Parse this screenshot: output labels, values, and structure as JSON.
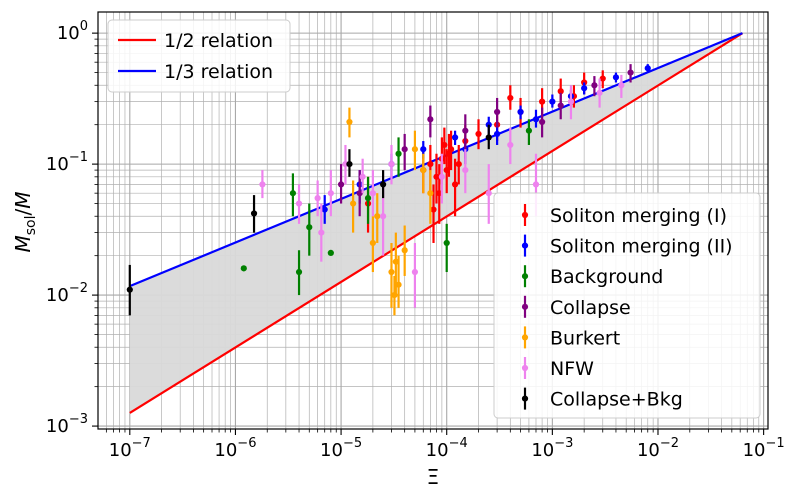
{
  "chart_data": {
    "type": "scatter",
    "xscale": "log",
    "yscale": "log",
    "xlabel_mathml": "Ξ",
    "ylabel_parts": {
      "main": "M",
      "sub": "sol",
      "sep": "/",
      "den": "M"
    },
    "xlim": [
      5e-08,
      0.11
    ],
    "ylim": [
      0.00095,
      1.45
    ],
    "xticks": [
      {
        "value": 1e-07,
        "base": "10",
        "exp": "−7"
      },
      {
        "value": 1e-06,
        "base": "10",
        "exp": "−6"
      },
      {
        "value": 1e-05,
        "base": "10",
        "exp": "−5"
      },
      {
        "value": 0.0001,
        "base": "10",
        "exp": "−4"
      },
      {
        "value": 0.001,
        "base": "10",
        "exp": "−3"
      },
      {
        "value": 0.01,
        "base": "10",
        "exp": "−2"
      },
      {
        "value": 0.1,
        "base": "10",
        "exp": "−1"
      }
    ],
    "yticks": [
      {
        "value": 0.001,
        "base": "10",
        "exp": "−3"
      },
      {
        "value": 0.01,
        "base": "10",
        "exp": "−2"
      },
      {
        "value": 0.1,
        "base": "10",
        "exp": "−1"
      },
      {
        "value": 1,
        "base": "10",
        "exp": "0"
      }
    ],
    "lines": [
      {
        "name": "1/2 relation",
        "color": "#ff0000",
        "x": [
          1e-07,
          0.063
        ],
        "y": [
          0.00126,
          1.0
        ]
      },
      {
        "name": "1/3 relation",
        "color": "#0000ff",
        "x": [
          1e-07,
          0.063
        ],
        "y": [
          0.0117,
          1.0
        ]
      }
    ],
    "band": {
      "color": "#d9d9d9",
      "between": [
        "1/2 relation",
        "1/3 relation"
      ]
    },
    "series": [
      {
        "name": "Soliton merging (I)",
        "color": "#ff0000",
        "points": [
          [
            8e-05,
            0.08,
            0.05,
            0.12
          ],
          [
            9e-05,
            0.11,
            0.07,
            0.16
          ],
          [
            0.0001,
            0.09,
            0.06,
            0.13
          ],
          [
            0.00011,
            0.13,
            0.09,
            0.18
          ],
          [
            0.00012,
            0.07,
            0.04,
            0.11
          ],
          [
            7e-05,
            0.1,
            0.06,
            0.14
          ],
          [
            8.5e-05,
            0.06,
            0.035,
            0.1
          ],
          [
            9.5e-05,
            0.14,
            0.1,
            0.19
          ],
          [
            0.000105,
            0.12,
            0.08,
            0.17
          ],
          [
            0.00013,
            0.1,
            0.07,
            0.14
          ],
          [
            6e-05,
            0.09,
            0.06,
            0.13
          ],
          [
            0.00015,
            0.15,
            0.11,
            0.2
          ],
          [
            0.0002,
            0.17,
            0.13,
            0.22
          ],
          [
            0.0003,
            0.2,
            0.15,
            0.26
          ],
          [
            0.0005,
            0.25,
            0.19,
            0.32
          ],
          [
            0.0008,
            0.3,
            0.24,
            0.38
          ],
          [
            0.0012,
            0.36,
            0.28,
            0.45
          ],
          [
            0.002,
            0.42,
            0.34,
            0.5
          ],
          [
            0.003,
            0.45,
            0.38,
            0.52
          ],
          [
            1.8e-05,
            0.05,
            0.03,
            0.08
          ],
          [
            7.5e-05,
            0.045,
            0.025,
            0.07
          ],
          [
            0.0004,
            0.32,
            0.26,
            0.4
          ],
          [
            0.0016,
            0.33,
            0.27,
            0.4
          ]
        ]
      },
      {
        "name": "Soliton merging (II)",
        "color": "#0000ff",
        "points": [
          [
            7e-06,
            0.045,
            0.035,
            0.058
          ],
          [
            1.5e-05,
            0.07,
            0.05,
            0.09
          ],
          [
            3e-05,
            0.1,
            0.08,
            0.12
          ],
          [
            6e-05,
            0.13,
            0.11,
            0.15
          ],
          [
            0.00012,
            0.16,
            0.14,
            0.18
          ],
          [
            0.00025,
            0.2,
            0.17,
            0.23
          ],
          [
            0.0005,
            0.25,
            0.22,
            0.28
          ],
          [
            0.001,
            0.3,
            0.27,
            0.34
          ],
          [
            0.002,
            0.38,
            0.34,
            0.42
          ],
          [
            0.004,
            0.46,
            0.42,
            0.5
          ],
          [
            0.008,
            0.54,
            0.5,
            0.58
          ],
          [
            0.00015,
            0.13,
            0.1,
            0.16
          ],
          [
            0.0007,
            0.22,
            0.19,
            0.26
          ],
          [
            0.0003,
            0.17,
            0.14,
            0.21
          ],
          [
            0.0015,
            0.33,
            0.29,
            0.37
          ]
        ]
      },
      {
        "name": "Background",
        "color": "#008000",
        "points": [
          [
            1.2e-06,
            0.016,
            0.016,
            0.016
          ],
          [
            3.5e-06,
            0.06,
            0.04,
            0.085
          ],
          [
            5e-06,
            0.033,
            0.02,
            0.05
          ],
          [
            8e-06,
            0.021,
            0.021,
            0.021
          ],
          [
            1.8e-05,
            0.055,
            0.035,
            0.08
          ],
          [
            3.5e-05,
            0.12,
            0.08,
            0.16
          ],
          [
            0.0001,
            0.025,
            0.015,
            0.035
          ],
          [
            0.0006,
            0.18,
            0.14,
            0.22
          ],
          [
            4e-06,
            0.015,
            0.01,
            0.022
          ]
        ]
      },
      {
        "name": "Collapse",
        "color": "#800080",
        "points": [
          [
            4e-05,
            0.13,
            0.09,
            0.17
          ],
          [
            7e-05,
            0.22,
            0.16,
            0.28
          ],
          [
            0.00015,
            0.18,
            0.13,
            0.24
          ],
          [
            0.0003,
            0.25,
            0.19,
            0.32
          ],
          [
            0.0012,
            0.28,
            0.22,
            0.35
          ],
          [
            0.0025,
            0.4,
            0.33,
            0.47
          ],
          [
            0.0055,
            0.5,
            0.42,
            0.58
          ],
          [
            1e-05,
            0.07,
            0.05,
            0.1
          ],
          [
            1.5e-05,
            0.06,
            0.04,
            0.09
          ],
          [
            0.0008,
            0.21,
            0.16,
            0.27
          ]
        ]
      },
      {
        "name": "Burkert",
        "color": "#ffa500",
        "points": [
          [
            1.2e-05,
            0.21,
            0.16,
            0.27
          ],
          [
            2e-05,
            0.025,
            0.015,
            0.04
          ],
          [
            3e-05,
            0.015,
            0.008,
            0.025
          ],
          [
            3.2e-05,
            0.01,
            0.007,
            0.014
          ],
          [
            3.3e-05,
            0.018,
            0.01,
            0.03
          ],
          [
            3.5e-05,
            0.012,
            0.008,
            0.02
          ],
          [
            5e-05,
            0.13,
            0.09,
            0.18
          ],
          [
            7e-05,
            0.06,
            0.035,
            0.09
          ],
          [
            2.2e-05,
            0.04,
            0.025,
            0.06
          ],
          [
            6e-05,
            0.09,
            0.06,
            0.12
          ],
          [
            1.3e-05,
            0.05,
            0.03,
            0.075
          ],
          [
            4e-05,
            0.022,
            0.014,
            0.034
          ]
        ]
      },
      {
        "name": "NFW",
        "color": "#ee82ee",
        "points": [
          [
            1.8e-06,
            0.07,
            0.055,
            0.09
          ],
          [
            4e-06,
            0.05,
            0.035,
            0.07
          ],
          [
            6e-06,
            0.055,
            0.04,
            0.075
          ],
          [
            8e-06,
            0.06,
            0.04,
            0.09
          ],
          [
            1.1e-05,
            0.1,
            0.07,
            0.14
          ],
          [
            1.6e-05,
            0.08,
            0.06,
            0.11
          ],
          [
            2.5e-05,
            0.04,
            0.02,
            0.07
          ],
          [
            5e-05,
            0.015,
            0.008,
            0.025
          ],
          [
            9e-05,
            0.08,
            0.05,
            0.12
          ],
          [
            0.00015,
            0.09,
            0.06,
            0.13
          ],
          [
            0.00025,
            0.06,
            0.035,
            0.1
          ],
          [
            0.0004,
            0.14,
            0.1,
            0.19
          ],
          [
            0.0007,
            0.07,
            0.04,
            0.12
          ],
          [
            0.0015,
            0.3,
            0.22,
            0.4
          ],
          [
            0.0028,
            0.35,
            0.27,
            0.45
          ],
          [
            0.0045,
            0.4,
            0.32,
            0.48
          ],
          [
            3e-05,
            0.1,
            0.07,
            0.14
          ],
          [
            6.5e-06,
            0.03,
            0.018,
            0.05
          ],
          [
            2e-05,
            0.06,
            0.04,
            0.09
          ]
        ]
      },
      {
        "name": "Collapse+Bkg",
        "color": "#000000",
        "points": [
          [
            1e-07,
            0.011,
            0.007,
            0.017
          ],
          [
            1.5e-06,
            0.042,
            0.03,
            0.058
          ],
          [
            1.2e-05,
            0.1,
            0.08,
            0.13
          ],
          [
            2.5e-05,
            0.07,
            0.055,
            0.09
          ],
          [
            0.00025,
            0.16,
            0.13,
            0.2
          ]
        ]
      }
    ],
    "legends": [
      {
        "placement": "upper-left",
        "entries": [
          "1/2 relation",
          "1/3 relation"
        ]
      },
      {
        "placement": "lower-right",
        "entries": [
          "Soliton merging (I)",
          "Soliton merging (II)",
          "Background",
          "Collapse",
          "Burkert",
          "NFW",
          "Collapse+Bkg"
        ]
      }
    ]
  }
}
